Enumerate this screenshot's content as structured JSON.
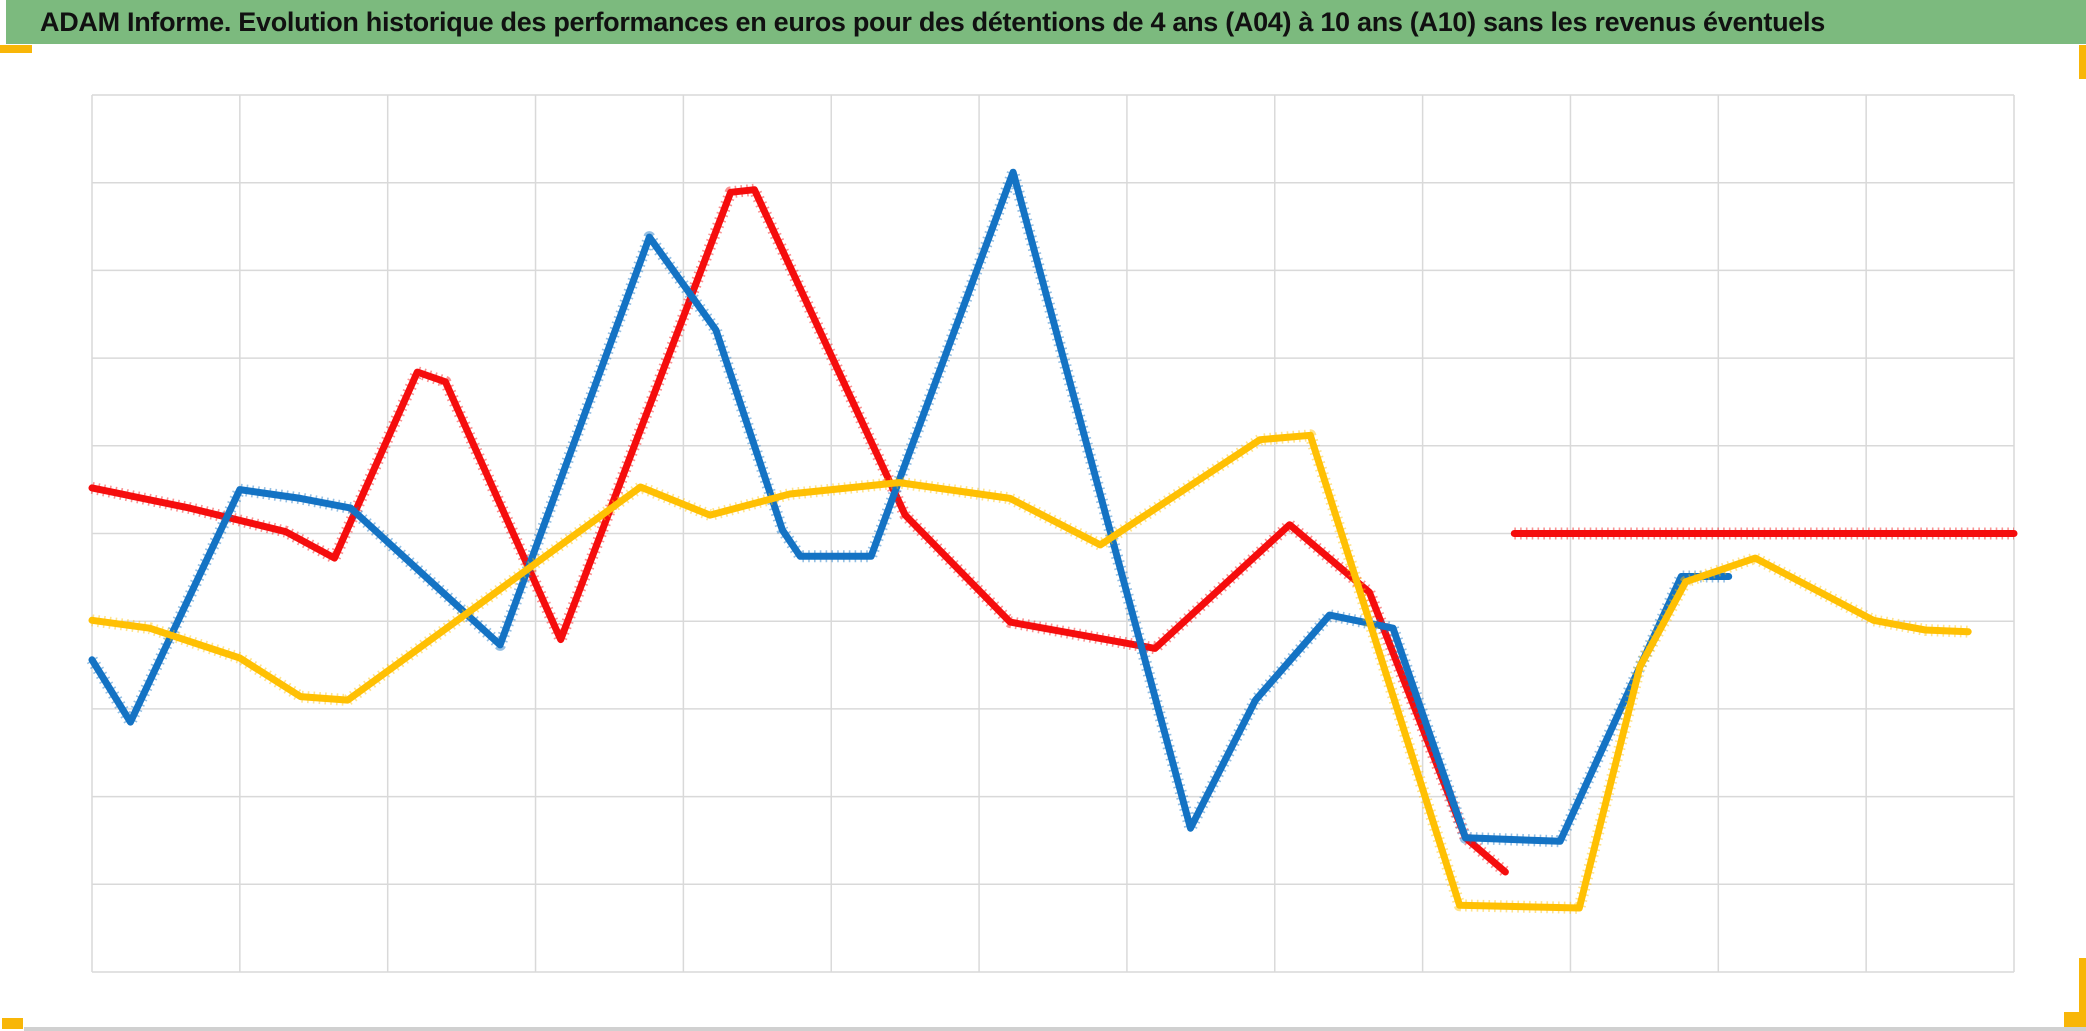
{
  "header": {
    "title": "ADAM Informe. Evolution historique des performances en euros pour des détentions de 4 ans (A04) à 10 ans (A10) sans les revenus éventuels",
    "bg_color": "#7CBA7E",
    "text_color": "#111111"
  },
  "chart_data": {
    "type": "line",
    "title": "ADAM Informe. Evolution historique des performances en euros pour des détentions de 4 ans (A04) à 10 ans (A10) sans les revenus éventuels",
    "xlabel": "",
    "ylabel": "",
    "x_axis": {
      "tick_labels_visible": false,
      "divisions": 13,
      "range_units": [
        0,
        13
      ]
    },
    "y_axis": {
      "tick_labels_visible": false,
      "divisions": 10,
      "range_units": [
        0,
        10
      ]
    },
    "grid": true,
    "legend_position": "none",
    "marker_style": "dense-plus-markers",
    "grid_color": "#D9D9D9",
    "note": "Axes have no visible tick labels; point coordinates are in gridline units (x: 0-13 columns left to right, y: 0-10 rows bottom to top).",
    "series": [
      {
        "name": "red-series",
        "color": "#F50D0D",
        "segments": [
          [
            [
              0,
              5.52
            ],
            [
              0.66,
              5.29
            ],
            [
              1.31,
              5.02
            ],
            [
              1.64,
              4.72
            ],
            [
              2.2,
              6.84
            ],
            [
              2.39,
              6.73
            ],
            [
              3.17,
              3.79
            ],
            [
              4.32,
              8.89
            ],
            [
              4.48,
              8.92
            ],
            [
              5.5,
              5.21
            ],
            [
              6.21,
              3.99
            ],
            [
              7.19,
              3.69
            ],
            [
              8.1,
              5.1
            ],
            [
              8.64,
              4.33
            ],
            [
              9.29,
              1.53
            ],
            [
              9.56,
              1.14
            ]
          ],
          [
            [
              9.62,
              5.0
            ],
            [
              13.0,
              5.0
            ]
          ]
        ]
      },
      {
        "name": "blue-series",
        "color": "#1473C4",
        "segments": [
          [
            [
              0,
              3.56
            ],
            [
              0.26,
              2.85
            ],
            [
              1.0,
              5.5
            ],
            [
              1.41,
              5.4
            ],
            [
              1.75,
              5.29
            ],
            [
              2.76,
              3.73
            ],
            [
              3.77,
              8.38
            ],
            [
              4.22,
              7.32
            ],
            [
              4.67,
              5.04
            ],
            [
              4.79,
              4.74
            ],
            [
              5.27,
              4.74
            ],
            [
              6.23,
              9.12
            ],
            [
              7.43,
              1.64
            ],
            [
              7.87,
              3.1
            ],
            [
              8.37,
              4.07
            ],
            [
              8.8,
              3.92
            ],
            [
              9.29,
              1.53
            ],
            [
              9.93,
              1.49
            ],
            [
              10.47,
              3.48
            ],
            [
              10.75,
              4.51
            ],
            [
              11.07,
              4.51
            ]
          ]
        ]
      },
      {
        "name": "yellow-series",
        "color": "#FFC003",
        "segments": [
          [
            [
              0,
              4.01
            ],
            [
              0.39,
              3.92
            ],
            [
              1.0,
              3.58
            ],
            [
              1.41,
              3.14
            ],
            [
              1.73,
              3.1
            ],
            [
              3.71,
              5.53
            ],
            [
              4.18,
              5.21
            ],
            [
              4.72,
              5.45
            ],
            [
              5.46,
              5.58
            ],
            [
              6.21,
              5.4
            ],
            [
              6.82,
              4.87
            ],
            [
              7.9,
              6.07
            ],
            [
              8.24,
              6.12
            ],
            [
              9.25,
              0.76
            ],
            [
              10.06,
              0.73
            ],
            [
              10.47,
              3.48
            ],
            [
              10.78,
              4.45
            ],
            [
              11.25,
              4.72
            ],
            [
              12.05,
              4.01
            ],
            [
              12.4,
              3.9
            ],
            [
              12.69,
              3.88
            ]
          ]
        ]
      }
    ]
  },
  "decorations": {
    "selection_handle_color": "#F8B608",
    "bottom_edge_color": "#D0D0D0"
  }
}
